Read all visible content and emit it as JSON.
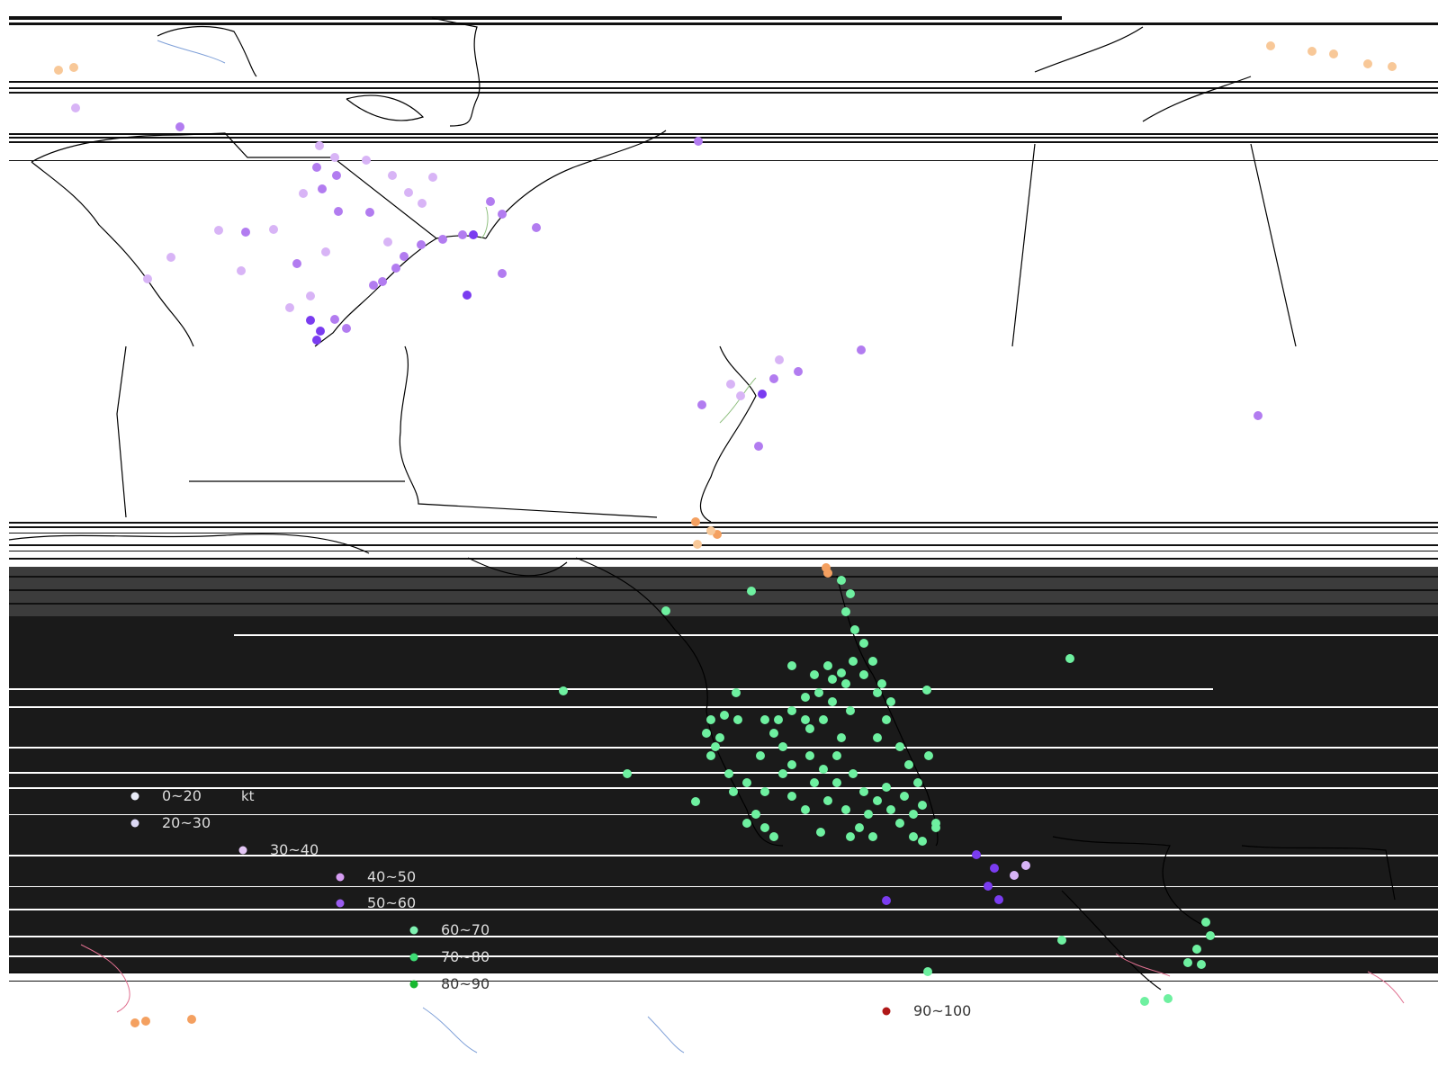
{
  "legend": {
    "title": "kt",
    "items": [
      {
        "label": "0~20",
        "color": "#e9ecf8"
      },
      {
        "label": "20~30",
        "color": "#dcd8f4"
      },
      {
        "label": "30~40",
        "color": "#e3c6f5"
      },
      {
        "label": "40~50",
        "color": "#d59cf2"
      },
      {
        "label": "50~60",
        "color": "#9a5cf0"
      },
      {
        "label": "60~70",
        "color": "#7ff2b2"
      },
      {
        "label": "70~80",
        "color": "#3ddc74"
      },
      {
        "label": "80~90",
        "color": "#18b830"
      },
      {
        "label": "90~100",
        "color": "#b01818"
      }
    ]
  },
  "colors": {
    "background": "#ffffff",
    "dark_band": "#1a1a1a",
    "coast": "#000000",
    "light_purple": "#d8b4f6",
    "purple": "#b27cf0",
    "deep_purple": "#7a3cf0",
    "green": "#6ef0a0",
    "orange": "#f4a060",
    "peach": "#f8c898",
    "blue": "#4040e0"
  }
}
